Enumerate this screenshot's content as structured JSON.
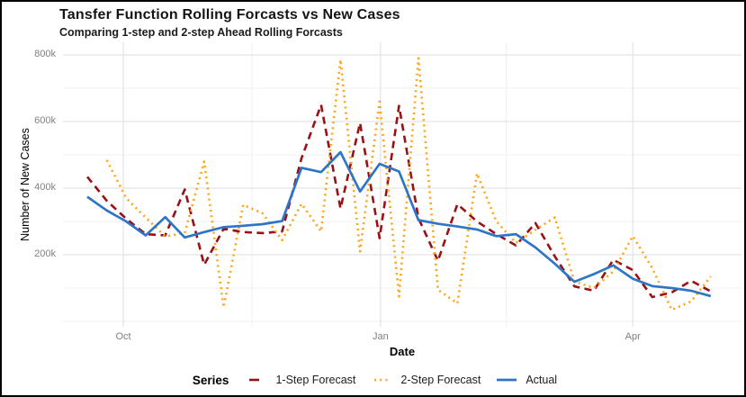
{
  "chart": {
    "title": "Tansfer Function Rolling Forcasts vs New Cases",
    "subtitle": "Comparing 1-step and 2-step Ahead Rolling Forcasts",
    "x_axis_label": "Date",
    "y_axis_label": "Number of New Cases",
    "legend_title": "Series"
  },
  "chart_data": {
    "type": "line",
    "title": "Tansfer Function Rolling Forcasts vs New Cases",
    "subtitle": "Comparing 1-step and 2-step Ahead Rolling Forcasts",
    "xlabel": "Date",
    "ylabel": "Number of New Cases",
    "legend_position": "bottom",
    "legend_title": "Series",
    "grid": true,
    "x_unit": "weeks from first observation (mid-September, weekly points)",
    "values_unit": "thousands of new cases",
    "x_tick_labels": [
      "Oct",
      "Jan",
      "Apr"
    ],
    "x_tick_positions_weeks": [
      1.85,
      15.05,
      28.0
    ],
    "x_minor_positions_weeks": [
      8.45,
      21.5,
      33.6
    ],
    "y_tick_labels": [
      "200k",
      "400k",
      "600k",
      "800k"
    ],
    "y_tick_values_k": [
      200,
      400,
      600,
      800
    ],
    "y_minor_values_k": [
      0,
      100,
      300,
      500,
      700
    ],
    "ylim_k": [
      -20,
      840
    ],
    "series": [
      {
        "name": "1-Step Forecast",
        "color": "#991114",
        "style": "dashed",
        "start_week": 0,
        "values_k": [
          434,
          362,
          308,
          262,
          258,
          396,
          170,
          278,
          268,
          265,
          270,
          490,
          650,
          339,
          596,
          250,
          647,
          310,
          182,
          352,
          300,
          262,
          228,
          295,
          195,
          105,
          92,
          185,
          154,
          73,
          87,
          122,
          90
        ]
      },
      {
        "name": "2-Step Forecast",
        "color": "#FFA319",
        "style": "dotted",
        "start_week": 1,
        "values_k": [
          484,
          370,
          312,
          255,
          265,
          480,
          42,
          350,
          324,
          244,
          353,
          270,
          786,
          210,
          660,
          75,
          790,
          95,
          54,
          444,
          300,
          236,
          275,
          312,
          120,
          100,
          150,
          256,
          160,
          35,
          60,
          135
        ]
      },
      {
        "name": "Actual",
        "color": "#2E75C8",
        "style": "solid",
        "start_week": 0,
        "values_k": [
          374,
          333,
          300,
          258,
          313,
          252,
          268,
          283,
          287,
          292,
          301,
          461,
          448,
          508,
          390,
          473,
          450,
          304,
          293,
          285,
          276,
          256,
          262,
          222,
          173,
          119,
          142,
          168,
          128,
          106,
          100,
          92,
          76
        ]
      }
    ]
  }
}
